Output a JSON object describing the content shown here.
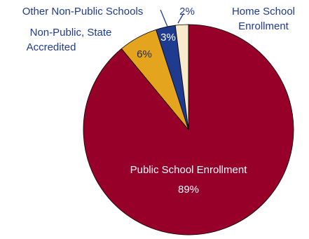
{
  "chart_data": {
    "type": "pie",
    "title": "",
    "slices": [
      {
        "label": "Public School Enrollment",
        "value": 89,
        "value_label": "89%",
        "color": "#970029"
      },
      {
        "label": "Non-Public, State Accredited",
        "label_lines": [
          "Non-Public, State",
          "Accredited"
        ],
        "value": 6,
        "value_label": "6%",
        "color": "#e4a41d"
      },
      {
        "label": "Other Non-Public Schools",
        "value": 3,
        "value_label": "3%",
        "color": "#1f3b8f"
      },
      {
        "label": "Home School Enrollment",
        "label_lines": [
          "Home School",
          "Enrollment"
        ],
        "value": 2,
        "value_label": "2%",
        "color": "#f8ebcb"
      }
    ],
    "start_angle_deg": 0,
    "direction": "clockwise",
    "legend": "none",
    "label_color": "#1f3b8f",
    "inside_label_color": "#ffffff",
    "edge_color": "#000000"
  }
}
